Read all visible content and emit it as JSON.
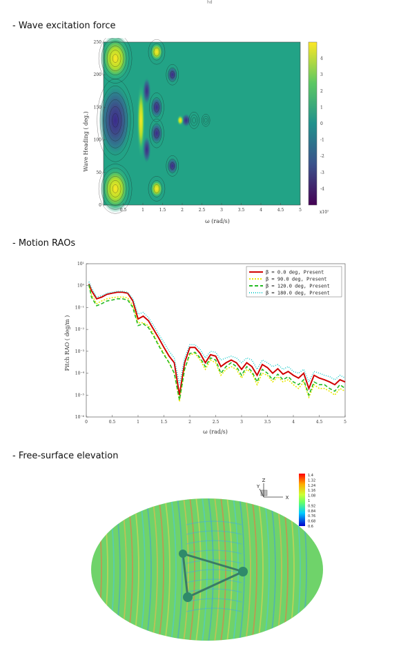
{
  "page_mark": "hd",
  "sections": {
    "excitation": {
      "heading": "- Wave excitation force",
      "chart_data": {
        "type": "heatmap",
        "xlabel": "ω (rad/s)",
        "ylabel": "Wave Heading ( deg.)",
        "x_ticks": [
          "0.5",
          "1",
          "1.5",
          "2",
          "2.5",
          "3",
          "3.5",
          "4",
          "4.5",
          "5"
        ],
        "y_ticks": [
          "0",
          "50",
          "100",
          "150",
          "200",
          "250"
        ],
        "xlim": [
          0,
          5
        ],
        "ylim": [
          0,
          250
        ],
        "colorbar_ticks": [
          "4",
          "3",
          "2",
          "1",
          "0",
          "-1",
          "-2",
          "-3",
          "-4"
        ],
        "colorbar_exponent": "x10⁷",
        "colormap": [
          "#440154",
          "#3b518b",
          "#2c8e8d",
          "#26ad81",
          "#5dc863",
          "#aadc32",
          "#fde725"
        ]
      }
    },
    "rao": {
      "heading": "- Motion RAOs",
      "chart_data": {
        "type": "line",
        "xlabel": "ω (rad/s)",
        "ylabel": "Pitch RAO ( deg/m )",
        "xlim": [
          0,
          5
        ],
        "log_y": true,
        "x_ticks": [
          "0",
          "0.5",
          "1",
          "1.5",
          "2",
          "2.5",
          "3",
          "3.5",
          "4",
          "4.5",
          "5"
        ],
        "y_ticks": [
          "10⁻⁶",
          "10⁻⁵",
          "10⁻⁴",
          "10⁻³",
          "10⁻²",
          "10⁻¹",
          "10⁰",
          "10¹"
        ],
        "x": [
          0.05,
          0.1,
          0.2,
          0.3,
          0.4,
          0.5,
          0.6,
          0.7,
          0.8,
          0.9,
          1.0,
          1.1,
          1.2,
          1.3,
          1.4,
          1.5,
          1.6,
          1.7,
          1.8,
          1.9,
          2.0,
          2.1,
          2.2,
          2.3,
          2.4,
          2.5,
          2.6,
          2.7,
          2.8,
          2.9,
          3.0,
          3.1,
          3.2,
          3.3,
          3.4,
          3.5,
          3.6,
          3.7,
          3.8,
          3.9,
          4.0,
          4.1,
          4.2,
          4.3,
          4.4,
          4.5,
          4.6,
          4.7,
          4.8,
          4.9,
          5.0
        ],
        "series": [
          {
            "name": "β =   0.0 deg, Present",
            "color": "#d00000",
            "values": [
              1.2,
              0.6,
              0.25,
              0.3,
              0.4,
              0.45,
              0.5,
              0.5,
              0.45,
              0.2,
              0.03,
              0.04,
              0.025,
              0.01,
              0.004,
              0.0015,
              0.0006,
              0.0003,
              1e-05,
              0.0003,
              0.0015,
              0.0015,
              0.0008,
              0.0003,
              0.0007,
              0.0006,
              0.0002,
              0.0003,
              0.0004,
              0.0003,
              0.00015,
              0.0003,
              0.0002,
              8e-05,
              0.00025,
              0.00018,
              0.0001,
              0.00016,
              9e-05,
              0.00012,
              8e-05,
              6e-05,
              0.0001,
              2e-05,
              8e-05,
              6e-05,
              5e-05,
              4e-05,
              3e-05,
              5e-05,
              4e-05
            ]
          },
          {
            "name": "β =  90.0 deg, Present",
            "color": "#e8e800",
            "values": [
              1.0,
              0.4,
              0.15,
              0.2,
              0.25,
              0.28,
              0.3,
              0.3,
              0.28,
              0.12,
              0.02,
              0.02,
              0.015,
              0.006,
              0.002,
              0.0008,
              0.0003,
              0.0001,
              5e-06,
              0.00015,
              0.0007,
              0.0008,
              0.0004,
              0.00015,
              0.0004,
              0.0003,
              8e-05,
              0.00015,
              0.0002,
              0.00015,
              6e-05,
              0.00015,
              0.0001,
              3e-05,
              0.0001,
              8e-05,
              4e-05,
              7e-05,
              4e-05,
              5e-05,
              3e-05,
              2e-05,
              4e-05,
              8e-06,
              3e-05,
              2e-05,
              2e-05,
              1.5e-05,
              1e-05,
              2e-05,
              1.5e-05
            ]
          },
          {
            "name": "β = 120.0 deg, Present",
            "color": "#22bb22",
            "values": [
              1.1,
              0.3,
              0.12,
              0.15,
              0.2,
              0.22,
              0.25,
              0.25,
              0.22,
              0.1,
              0.015,
              0.018,
              0.012,
              0.005,
              0.0018,
              0.0007,
              0.0003,
              0.0001,
              6e-06,
              0.00015,
              0.0008,
              0.0009,
              0.0005,
              0.0002,
              0.0005,
              0.0004,
              0.0001,
              0.0002,
              0.0003,
              0.0002,
              8e-05,
              0.0002,
              0.00012,
              4e-05,
              0.00015,
              0.0001,
              5e-05,
              9e-05,
              5e-05,
              7e-05,
              4e-05,
              3e-05,
              5e-05,
              1e-05,
              4e-05,
              3e-05,
              3e-05,
              2e-05,
              1.5e-05,
              3e-05,
              2e-05
            ]
          },
          {
            "name": "β = 180.0 deg, Present",
            "color": "#22cccc",
            "values": [
              1.5,
              0.8,
              0.3,
              0.35,
              0.45,
              0.5,
              0.55,
              0.55,
              0.5,
              0.25,
              0.05,
              0.06,
              0.035,
              0.015,
              0.006,
              0.0025,
              0.001,
              0.0005,
              3e-05,
              0.0005,
              0.002,
              0.002,
              0.0012,
              0.0005,
              0.001,
              0.0009,
              0.0004,
              0.0005,
              0.0006,
              0.0005,
              0.0003,
              0.0005,
              0.0004,
              0.00015,
              0.0004,
              0.0003,
              0.0002,
              0.00025,
              0.00015,
              0.0002,
              0.00012,
              0.0001,
              0.00015,
              4e-05,
              0.00012,
              0.0001,
              8e-05,
              7e-05,
              5e-05,
              8e-05,
              6e-05
            ]
          }
        ]
      }
    },
    "surface": {
      "heading": "- Free-surface elevation",
      "colorbar_labels": [
        "1.4",
        "1.32",
        "1.24",
        "1.16",
        "1.08",
        "1",
        "0.92",
        "0.84",
        "0.76",
        "0.68",
        "0.6"
      ],
      "colorbar_colors": [
        "#ff0000",
        "#ff6600",
        "#ffaa00",
        "#ffee00",
        "#ccff33",
        "#66ff66",
        "#33ffcc",
        "#00ccff",
        "#0088ff",
        "#0044ff",
        "#0000cc"
      ],
      "triad": {
        "z": "Z",
        "y": "Y",
        "x": "X"
      }
    }
  }
}
